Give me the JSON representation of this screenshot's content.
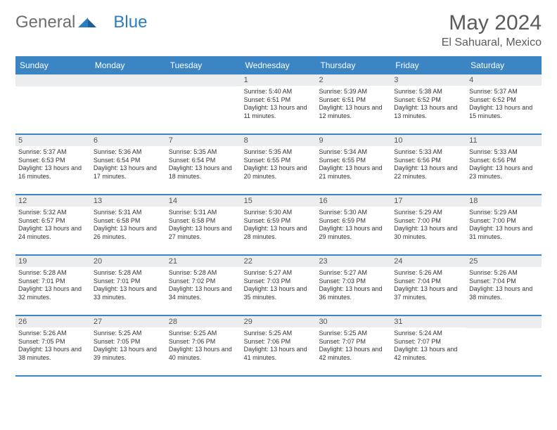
{
  "logo": {
    "text_gray": "General",
    "text_blue": "Blue"
  },
  "title": "May 2024",
  "location": "El Sahuaral, Mexico",
  "colors": {
    "header_blue": "#3b85c5",
    "daynum_bg": "#ecedee",
    "text_gray": "#5b5b5b",
    "logo_gray": "#6e6e6e",
    "logo_blue": "#2a7dc0"
  },
  "day_names": [
    "Sunday",
    "Monday",
    "Tuesday",
    "Wednesday",
    "Thursday",
    "Friday",
    "Saturday"
  ],
  "weeks": [
    [
      {
        "empty": true
      },
      {
        "empty": true
      },
      {
        "empty": true
      },
      {
        "num": "1",
        "sunrise": "Sunrise: 5:40 AM",
        "sunset": "Sunset: 6:51 PM",
        "daylight": "Daylight: 13 hours and 11 minutes."
      },
      {
        "num": "2",
        "sunrise": "Sunrise: 5:39 AM",
        "sunset": "Sunset: 6:51 PM",
        "daylight": "Daylight: 13 hours and 12 minutes."
      },
      {
        "num": "3",
        "sunrise": "Sunrise: 5:38 AM",
        "sunset": "Sunset: 6:52 PM",
        "daylight": "Daylight: 13 hours and 13 minutes."
      },
      {
        "num": "4",
        "sunrise": "Sunrise: 5:37 AM",
        "sunset": "Sunset: 6:52 PM",
        "daylight": "Daylight: 13 hours and 15 minutes."
      }
    ],
    [
      {
        "num": "5",
        "sunrise": "Sunrise: 5:37 AM",
        "sunset": "Sunset: 6:53 PM",
        "daylight": "Daylight: 13 hours and 16 minutes."
      },
      {
        "num": "6",
        "sunrise": "Sunrise: 5:36 AM",
        "sunset": "Sunset: 6:54 PM",
        "daylight": "Daylight: 13 hours and 17 minutes."
      },
      {
        "num": "7",
        "sunrise": "Sunrise: 5:35 AM",
        "sunset": "Sunset: 6:54 PM",
        "daylight": "Daylight: 13 hours and 18 minutes."
      },
      {
        "num": "8",
        "sunrise": "Sunrise: 5:35 AM",
        "sunset": "Sunset: 6:55 PM",
        "daylight": "Daylight: 13 hours and 20 minutes."
      },
      {
        "num": "9",
        "sunrise": "Sunrise: 5:34 AM",
        "sunset": "Sunset: 6:55 PM",
        "daylight": "Daylight: 13 hours and 21 minutes."
      },
      {
        "num": "10",
        "sunrise": "Sunrise: 5:33 AM",
        "sunset": "Sunset: 6:56 PM",
        "daylight": "Daylight: 13 hours and 22 minutes."
      },
      {
        "num": "11",
        "sunrise": "Sunrise: 5:33 AM",
        "sunset": "Sunset: 6:56 PM",
        "daylight": "Daylight: 13 hours and 23 minutes."
      }
    ],
    [
      {
        "num": "12",
        "sunrise": "Sunrise: 5:32 AM",
        "sunset": "Sunset: 6:57 PM",
        "daylight": "Daylight: 13 hours and 24 minutes."
      },
      {
        "num": "13",
        "sunrise": "Sunrise: 5:31 AM",
        "sunset": "Sunset: 6:58 PM",
        "daylight": "Daylight: 13 hours and 26 minutes."
      },
      {
        "num": "14",
        "sunrise": "Sunrise: 5:31 AM",
        "sunset": "Sunset: 6:58 PM",
        "daylight": "Daylight: 13 hours and 27 minutes."
      },
      {
        "num": "15",
        "sunrise": "Sunrise: 5:30 AM",
        "sunset": "Sunset: 6:59 PM",
        "daylight": "Daylight: 13 hours and 28 minutes."
      },
      {
        "num": "16",
        "sunrise": "Sunrise: 5:30 AM",
        "sunset": "Sunset: 6:59 PM",
        "daylight": "Daylight: 13 hours and 29 minutes."
      },
      {
        "num": "17",
        "sunrise": "Sunrise: 5:29 AM",
        "sunset": "Sunset: 7:00 PM",
        "daylight": "Daylight: 13 hours and 30 minutes."
      },
      {
        "num": "18",
        "sunrise": "Sunrise: 5:29 AM",
        "sunset": "Sunset: 7:00 PM",
        "daylight": "Daylight: 13 hours and 31 minutes."
      }
    ],
    [
      {
        "num": "19",
        "sunrise": "Sunrise: 5:28 AM",
        "sunset": "Sunset: 7:01 PM",
        "daylight": "Daylight: 13 hours and 32 minutes."
      },
      {
        "num": "20",
        "sunrise": "Sunrise: 5:28 AM",
        "sunset": "Sunset: 7:01 PM",
        "daylight": "Daylight: 13 hours and 33 minutes."
      },
      {
        "num": "21",
        "sunrise": "Sunrise: 5:28 AM",
        "sunset": "Sunset: 7:02 PM",
        "daylight": "Daylight: 13 hours and 34 minutes."
      },
      {
        "num": "22",
        "sunrise": "Sunrise: 5:27 AM",
        "sunset": "Sunset: 7:03 PM",
        "daylight": "Daylight: 13 hours and 35 minutes."
      },
      {
        "num": "23",
        "sunrise": "Sunrise: 5:27 AM",
        "sunset": "Sunset: 7:03 PM",
        "daylight": "Daylight: 13 hours and 36 minutes."
      },
      {
        "num": "24",
        "sunrise": "Sunrise: 5:26 AM",
        "sunset": "Sunset: 7:04 PM",
        "daylight": "Daylight: 13 hours and 37 minutes."
      },
      {
        "num": "25",
        "sunrise": "Sunrise: 5:26 AM",
        "sunset": "Sunset: 7:04 PM",
        "daylight": "Daylight: 13 hours and 38 minutes."
      }
    ],
    [
      {
        "num": "26",
        "sunrise": "Sunrise: 5:26 AM",
        "sunset": "Sunset: 7:05 PM",
        "daylight": "Daylight: 13 hours and 38 minutes."
      },
      {
        "num": "27",
        "sunrise": "Sunrise: 5:25 AM",
        "sunset": "Sunset: 7:05 PM",
        "daylight": "Daylight: 13 hours and 39 minutes."
      },
      {
        "num": "28",
        "sunrise": "Sunrise: 5:25 AM",
        "sunset": "Sunset: 7:06 PM",
        "daylight": "Daylight: 13 hours and 40 minutes."
      },
      {
        "num": "29",
        "sunrise": "Sunrise: 5:25 AM",
        "sunset": "Sunset: 7:06 PM",
        "daylight": "Daylight: 13 hours and 41 minutes."
      },
      {
        "num": "30",
        "sunrise": "Sunrise: 5:25 AM",
        "sunset": "Sunset: 7:07 PM",
        "daylight": "Daylight: 13 hours and 42 minutes."
      },
      {
        "num": "31",
        "sunrise": "Sunrise: 5:24 AM",
        "sunset": "Sunset: 7:07 PM",
        "daylight": "Daylight: 13 hours and 42 minutes."
      },
      {
        "empty": true
      }
    ]
  ]
}
